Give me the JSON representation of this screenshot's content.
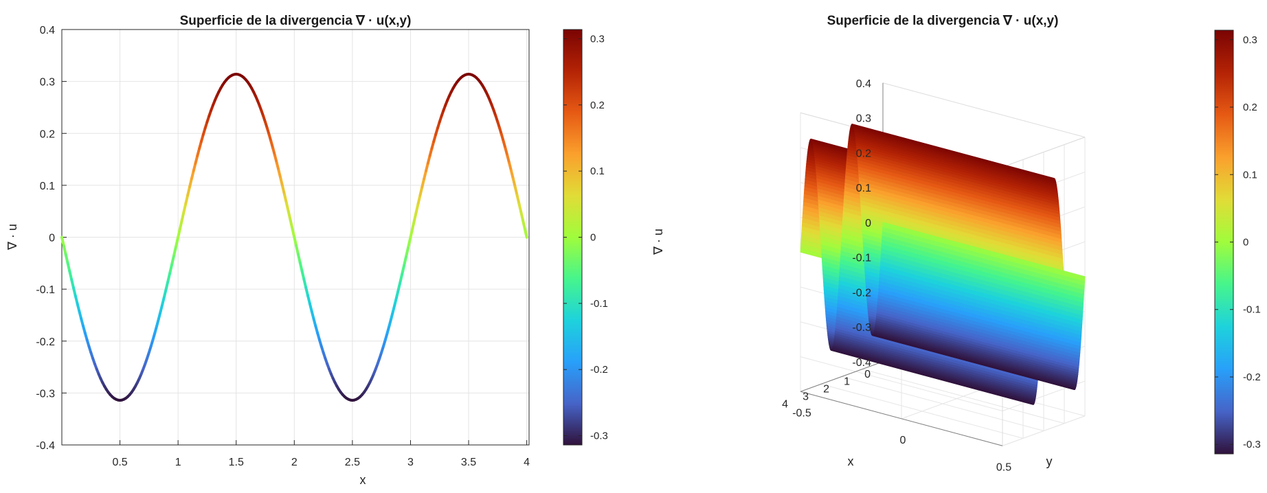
{
  "chart_data": [
    {
      "type": "line",
      "title": "Superficie de la divergencia ∇ · u(x,y)",
      "xlabel": "x",
      "ylabel": "∇ · u",
      "xlim": [
        0,
        4
      ],
      "ylim": [
        -0.4,
        0.4
      ],
      "xticks": [
        "0.5",
        "1",
        "1.5",
        "2",
        "2.5",
        "3",
        "3.5",
        "4"
      ],
      "yticks": [
        "-0.4",
        "-0.3",
        "-0.2",
        "-0.1",
        "0",
        "0.1",
        "0.2",
        "0.3",
        "0.4"
      ],
      "grid": true,
      "colormap": "turbo",
      "x": [
        0,
        0.1,
        0.2,
        0.3,
        0.4,
        0.5,
        0.6,
        0.7,
        0.8,
        0.9,
        1.0,
        1.1,
        1.2,
        1.3,
        1.4,
        1.5,
        1.6,
        1.7,
        1.8,
        1.9,
        2.0,
        2.1,
        2.2,
        2.3,
        2.4,
        2.5,
        2.6,
        2.7,
        2.8,
        2.9,
        3.0,
        3.1,
        3.2,
        3.3,
        3.4,
        3.5,
        3.6,
        3.7,
        3.8,
        3.9,
        4.0
      ],
      "y": [
        0,
        -0.097,
        -0.185,
        -0.254,
        -0.299,
        -0.314,
        -0.299,
        -0.254,
        -0.185,
        -0.097,
        0,
        0.097,
        0.185,
        0.254,
        0.299,
        0.314,
        0.299,
        0.254,
        0.185,
        0.097,
        0,
        -0.097,
        -0.185,
        -0.254,
        -0.299,
        -0.314,
        -0.299,
        -0.254,
        -0.185,
        -0.097,
        0,
        0.097,
        0.185,
        0.254,
        0.299,
        0.314,
        0.299,
        0.254,
        0.185,
        0.097,
        0
      ],
      "colorbar": {
        "ticks": [
          "0.3",
          "0.2",
          "0.1",
          "0",
          "-0.1",
          "-0.2",
          "-0.3"
        ],
        "range": [
          -0.314,
          0.314
        ]
      }
    },
    {
      "type": "surface",
      "title": "Superficie de la divergencia ∇ · u(x,y)",
      "xlabel": "x",
      "ylabel": "y",
      "zlabel": "∇ · u",
      "xlim": [
        0,
        4
      ],
      "ylim": [
        -0.5,
        0.5
      ],
      "zlim": [
        -0.4,
        0.4
      ],
      "xticks": [
        "0",
        "1",
        "2",
        "3",
        "4"
      ],
      "yticks": [
        "-0.5",
        "0",
        "0.5"
      ],
      "zticks": [
        "0.4",
        "0.3",
        "0.2",
        "0.1",
        "0",
        "-0.1",
        "-0.2",
        "-0.3",
        "-0.4"
      ],
      "grid": true,
      "colormap": "turbo",
      "function": "z = 0.314 * sin(pi * x) * -1, constant in y",
      "colorbar": {
        "ticks": [
          "0.3",
          "0.2",
          "0.1",
          "0",
          "-0.1",
          "-0.2",
          "-0.3"
        ],
        "range": [
          -0.314,
          0.314
        ]
      }
    }
  ]
}
